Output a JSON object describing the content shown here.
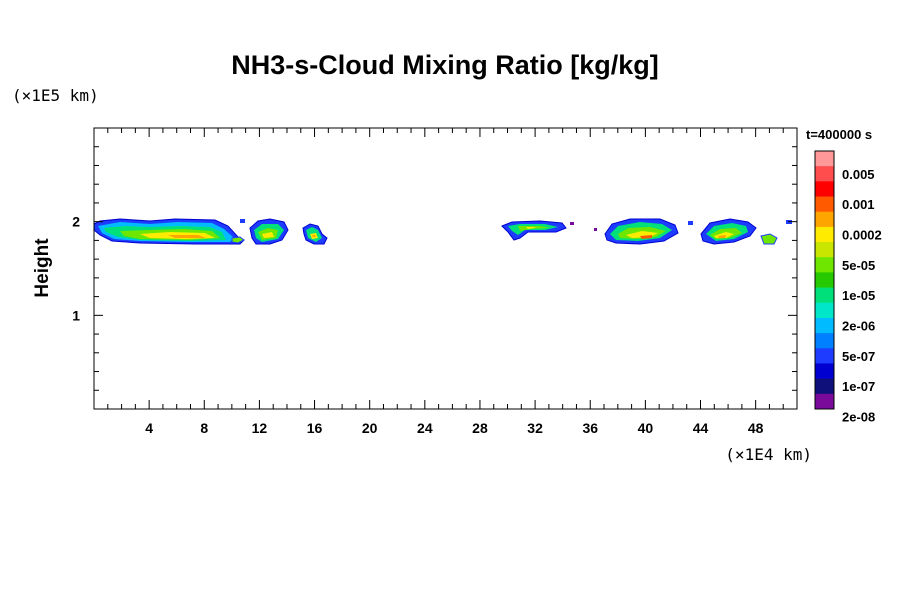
{
  "chart_data": {
    "type": "heatmap",
    "title": "NH3-s-Cloud Mixing Ratio [kg/kg]",
    "ylabel": "Height",
    "x_unit_label": "(×1E4 km)",
    "y_unit_label": "(×1E5 km)",
    "time_label": "t=400000 s",
    "xlim": [
      0,
      51
    ],
    "ylim": [
      0,
      3
    ],
    "x_ticks": [
      4,
      8,
      12,
      16,
      20,
      24,
      28,
      32,
      36,
      40,
      44,
      48
    ],
    "y_ticks": [
      1,
      2
    ],
    "colorbar": {
      "colors": [
        "#ff9999",
        "#ff4d4d",
        "#ff0000",
        "#ff5a00",
        "#ffa500",
        "#ffeb00",
        "#c8e600",
        "#6ee600",
        "#26c800",
        "#00e07a",
        "#00e6c8",
        "#00bbff",
        "#0080ff",
        "#1e3cff",
        "#0000d0",
        "#10107a",
        "#7a0a9a"
      ],
      "labels": [
        "0.005",
        "0.001",
        "0.0002",
        "5e-05",
        "1e-05",
        "2e-06",
        "5e-07",
        "1e-07",
        "2e-08"
      ]
    },
    "cloud_regions": [
      {
        "x": [
          0.2,
          10.9
        ],
        "y": [
          1.76,
          1.99
        ],
        "peak_color": "#ffa500"
      },
      {
        "x": [
          11.4,
          14.3
        ],
        "y": [
          1.78,
          2.0
        ],
        "peak_color": "#ffeb00"
      },
      {
        "x": [
          15.1,
          17.1
        ],
        "y": [
          1.76,
          1.93
        ],
        "peak_color": "#ffa500"
      },
      {
        "x": [
          29.3,
          34.6
        ],
        "y": [
          1.87,
          1.96
        ],
        "peak_color": "#ffeb00"
      },
      {
        "x": [
          37.9,
          44.8
        ],
        "y": [
          1.77,
          1.98
        ],
        "peak_color": "#ff5a00"
      },
      {
        "x": [
          44.4,
          50.2
        ],
        "y": [
          1.76,
          1.98
        ],
        "peak_color": "#ffa500"
      }
    ]
  }
}
